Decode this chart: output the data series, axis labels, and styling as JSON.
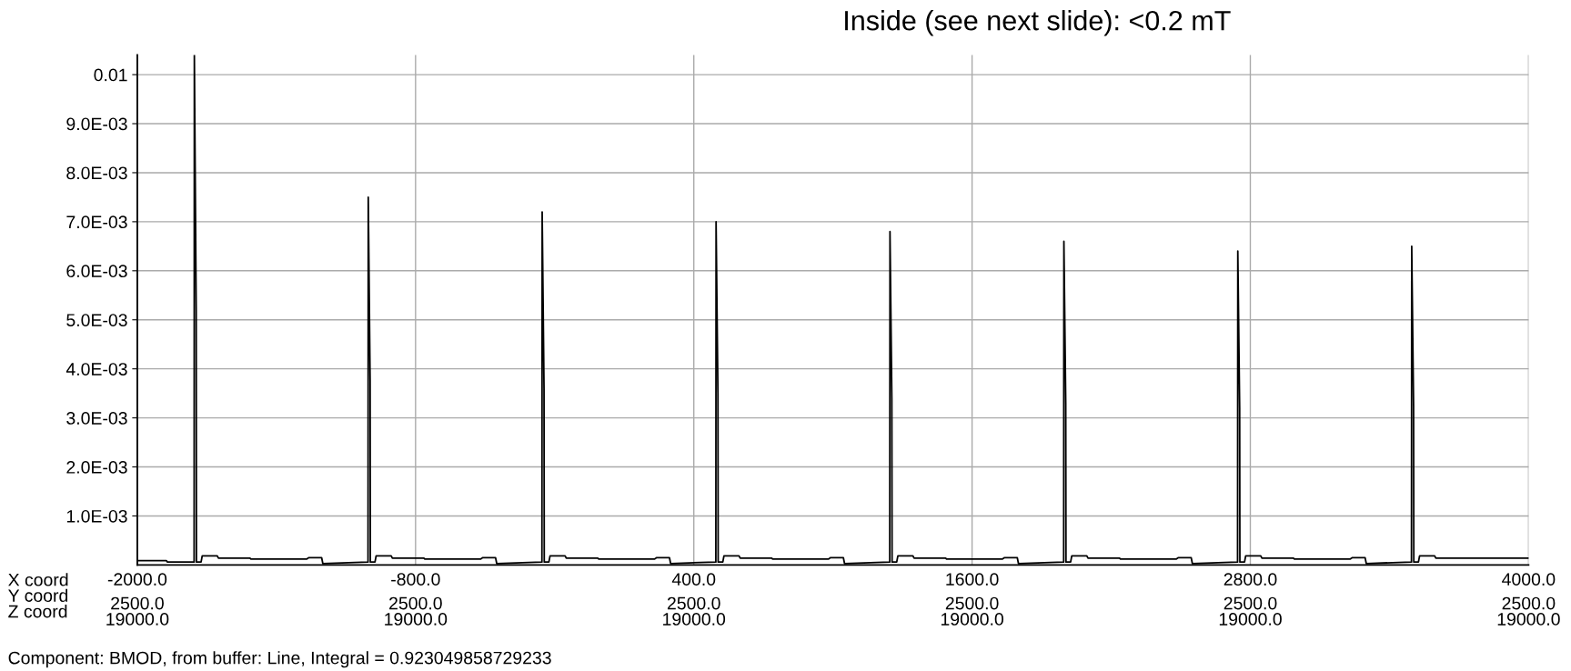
{
  "chart_data": {
    "type": "line",
    "title": "Inside (see next slide): <0.2 mT",
    "xlabel": "X coord\nY coord\nZ coord",
    "annotations": [
      "Component: BMOD, from buffer: Line, Integral = 0.923049858729233",
      "2500.0\n19000.0",
      "2500.0\n19000.0",
      "2500.0\n19000.0",
      "2500.0\n19000.0",
      "2500.0\n19000.0",
      "2500.0\n19000.0"
    ],
    "xlim": [
      -2000,
      4000
    ],
    "ylim": [
      0,
      0.0104
    ],
    "xticks": [
      {
        "value": -2000,
        "label": "-2000.0"
      },
      {
        "value": -800,
        "label": "-800.0"
      },
      {
        "value": 400,
        "label": "400.0"
      },
      {
        "value": 1600,
        "label": "1600.0"
      },
      {
        "value": 2800,
        "label": "2800.0"
      },
      {
        "value": 4000,
        "label": "4000.0"
      }
    ],
    "yticks": [
      {
        "value": 0.001,
        "label": "1.0E-03"
      },
      {
        "value": 0.002,
        "label": "2.0E-03"
      },
      {
        "value": 0.003,
        "label": "3.0E-03"
      },
      {
        "value": 0.004,
        "label": "4.0E-03"
      },
      {
        "value": 0.005,
        "label": "5.0E-03"
      },
      {
        "value": 0.006,
        "label": "6.0E-03"
      },
      {
        "value": 0.007,
        "label": "7.0E-03"
      },
      {
        "value": 0.008,
        "label": "8.0E-03"
      },
      {
        "value": 0.009,
        "label": "9.0E-03"
      },
      0.01
    ],
    "grid": true,
    "marker": "none",
    "line_style": "solid",
    "series": [
      {
        "color": "#000000",
        "x": [
          -2000,
          -1875,
          -1870,
          -1755,
          -1754,
          -1746,
          -1745,
          -1725,
          -1720,
          -1655,
          -1650,
          -1514,
          -1510,
          -1270,
          -1260,
          -1205,
          -1200,
          -1005,
          -1004,
          -996,
          -995,
          -975,
          -970,
          -905,
          -900,
          -764,
          -760,
          -520,
          -510,
          -455,
          -450,
          -255,
          -254,
          -246,
          -245,
          -225,
          -220,
          -155,
          -150,
          -14,
          -10,
          230,
          240,
          295,
          300,
          495,
          496,
          504,
          505,
          525,
          530,
          595,
          600,
          736,
          740,
          980,
          990,
          1045,
          1050,
          1245,
          1246,
          1254,
          1255,
          1275,
          1280,
          1345,
          1350,
          1486,
          1490,
          1730,
          1740,
          1795,
          1800,
          1995,
          1996,
          2004,
          2005,
          2025,
          2030,
          2095,
          2100,
          2236,
          2240,
          2480,
          2490,
          2545,
          2550,
          2745,
          2746,
          2754,
          2755,
          2775,
          2780,
          2845,
          2850,
          2986,
          2990,
          3230,
          3240,
          3295,
          3300,
          3495,
          3496,
          3504,
          3505,
          3525,
          3530,
          3595,
          3600,
          4000
        ],
        "values": [
          9e-05,
          9e-05,
          6e-05,
          6e-05,
          0.0104,
          0.0052,
          6e-05,
          6e-05,
          0.000185,
          0.000185,
          0.00014,
          0.00014,
          0.00012,
          0.00012,
          0.00015,
          0.00015,
          3e-05,
          6e-05,
          0.0075,
          0.00376,
          6e-05,
          6e-05,
          0.000185,
          0.000185,
          0.00014,
          0.00014,
          0.00012,
          0.00012,
          0.00015,
          0.00015,
          3e-05,
          6e-05,
          0.0072,
          0.0036,
          6e-05,
          6e-05,
          0.000185,
          0.000185,
          0.00014,
          0.00014,
          0.00012,
          0.00012,
          0.00015,
          0.00015,
          3e-05,
          6e-05,
          0.007,
          0.0035,
          6e-05,
          6e-05,
          0.000185,
          0.000185,
          0.00014,
          0.00014,
          0.00012,
          0.00012,
          0.00015,
          0.00015,
          3e-05,
          6e-05,
          0.0068,
          0.0034,
          6e-05,
          6e-05,
          0.000185,
          0.000185,
          0.00014,
          0.00014,
          0.00012,
          0.00012,
          0.00015,
          0.00015,
          3e-05,
          6e-05,
          0.0066,
          0.0033,
          6e-05,
          6e-05,
          0.000185,
          0.000185,
          0.00014,
          0.00014,
          0.00012,
          0.00012,
          0.00015,
          0.00015,
          3e-05,
          6e-05,
          0.0064,
          0.0032,
          6e-05,
          6e-05,
          0.000185,
          0.000185,
          0.00014,
          0.00014,
          0.00012,
          0.00012,
          0.00015,
          0.00015,
          3e-05,
          6e-05,
          0.0065,
          0.00325,
          6e-05,
          6e-05,
          0.000185,
          0.000185,
          0.00014,
          0.00014
        ]
      }
    ]
  }
}
